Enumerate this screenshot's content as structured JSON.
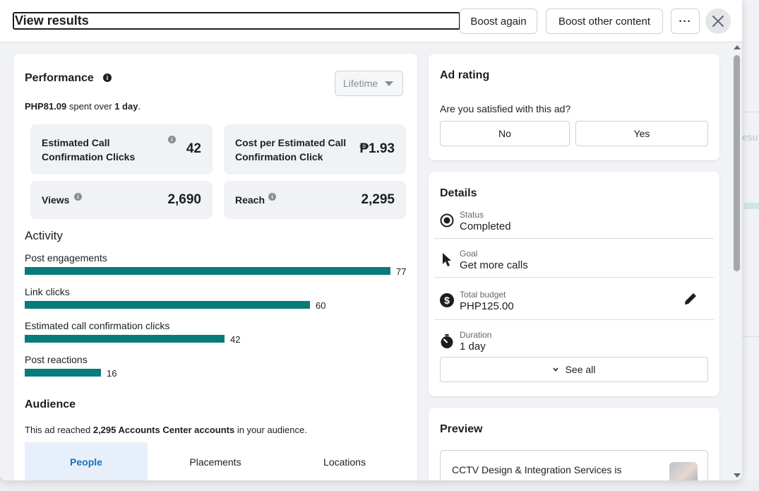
{
  "header": {
    "title": "View results",
    "boost_again": "Boost again",
    "boost_other": "Boost other content",
    "more": "···"
  },
  "performance": {
    "title": "Performance",
    "dropdown": "Lifetime",
    "spent_amount": "PHP81.09",
    "spent_mid": " spent over ",
    "spent_days": "1 day",
    "spent_end": ".",
    "metrics": [
      {
        "label": "Estimated Call Confirmation Clicks",
        "value": "42"
      },
      {
        "label": "Cost per Estimated Call Confirmation Click",
        "value": "₱1.93"
      },
      {
        "label": "Views",
        "value": "2,690"
      },
      {
        "label": "Reach",
        "value": "2,295"
      }
    ]
  },
  "activity": {
    "title": "Activity",
    "max": 77,
    "items": [
      {
        "label": "Post engagements",
        "value": 77
      },
      {
        "label": "Link clicks",
        "value": 60
      },
      {
        "label": "Estimated call confirmation clicks",
        "value": 42
      },
      {
        "label": "Post reactions",
        "value": 16
      }
    ]
  },
  "audience": {
    "title": "Audience",
    "text_pre": "This ad reached ",
    "text_bold": "2,295 Accounts Center accounts",
    "text_post": " in your audience.",
    "tabs": [
      "People",
      "Placements",
      "Locations"
    ]
  },
  "rating": {
    "title": "Ad rating",
    "question": "Are you satisfied with this ad?",
    "no": "No",
    "yes": "Yes"
  },
  "details": {
    "title": "Details",
    "rows": [
      {
        "key": "Status",
        "value": "Completed"
      },
      {
        "key": "Goal",
        "value": "Get more calls"
      },
      {
        "key": "Total budget",
        "value": "PHP125.00"
      },
      {
        "key": "Duration",
        "value": "1 day"
      }
    ],
    "see_all": "See all"
  },
  "preview": {
    "title": "Preview",
    "text": "CCTV Design & Integration Services is"
  },
  "background": {
    "ghost_text": "resu"
  },
  "colors": {
    "bar": "#077b7a",
    "active_tab": "#1b72b8"
  }
}
